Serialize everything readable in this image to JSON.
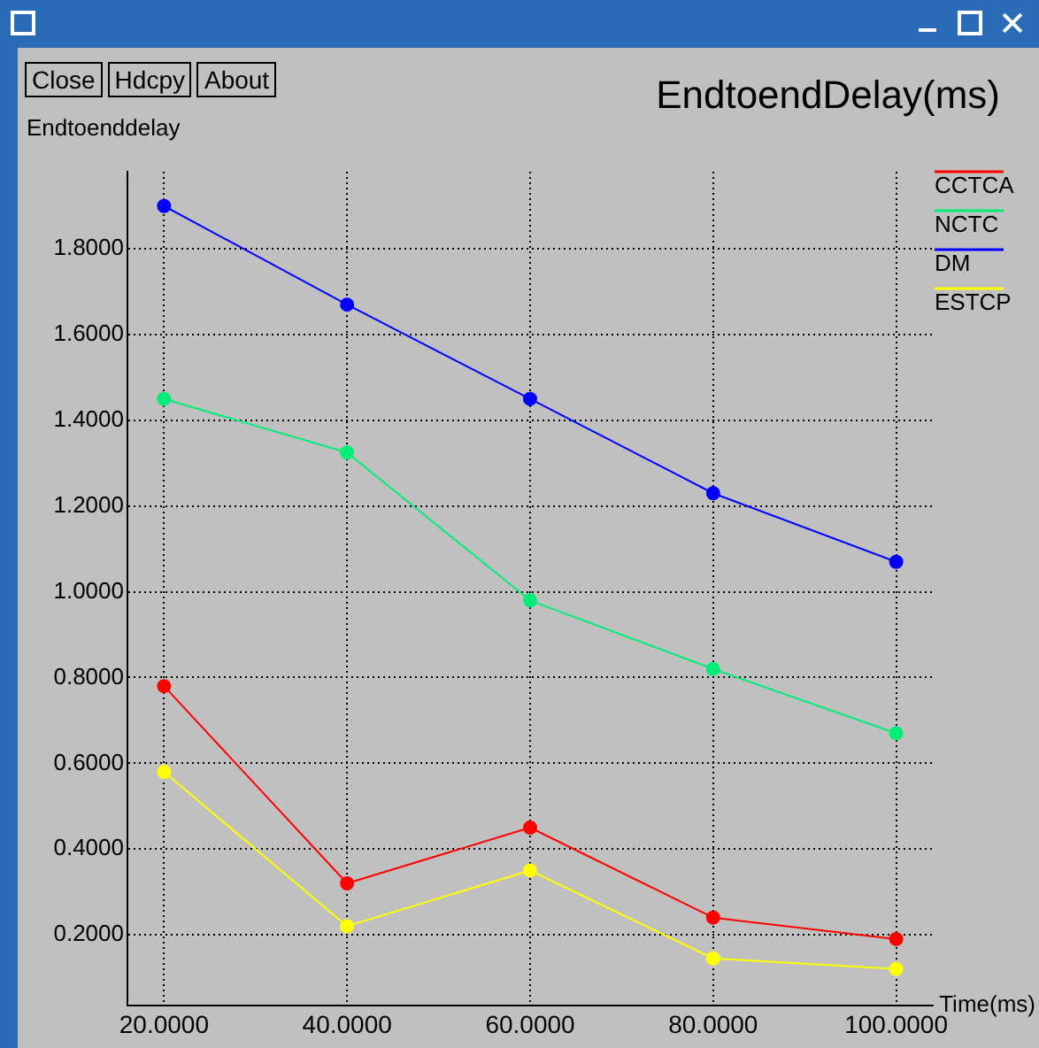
{
  "chart_data": {
    "type": "line",
    "title": "EndtoendDelay(ms)",
    "ylabel": "Endtoenddelay",
    "xlabel": "Time(ms)",
    "annotations": [
      "Close",
      "Hdcpy",
      "About"
    ],
    "x": [
      20,
      40,
      60,
      80,
      100
    ],
    "xlim": [
      16,
      104
    ],
    "xticks": [
      {
        "value": 20,
        "label": "20.0000"
      },
      {
        "value": 40,
        "label": "40.0000"
      },
      {
        "value": 60,
        "label": "60.0000"
      },
      {
        "value": 80,
        "label": "80.0000"
      },
      {
        "value": 100,
        "label": "100.0000"
      }
    ],
    "ylim": [
      0.035,
      1.98
    ],
    "yticks": [
      {
        "value": 0.2,
        "label": "0.2000"
      },
      {
        "value": 0.4,
        "label": "0.4000"
      },
      {
        "value": 0.6,
        "label": "0.6000"
      },
      {
        "value": 0.8,
        "label": "0.8000"
      },
      {
        "value": 1.0,
        "label": "1.0000"
      },
      {
        "value": 1.2,
        "label": "1.2000"
      },
      {
        "value": 1.4,
        "label": "1.4000"
      },
      {
        "value": 1.6,
        "label": "1.6000"
      },
      {
        "value": 1.8,
        "label": "1.8000"
      }
    ],
    "series": [
      {
        "name": "CCTCA",
        "color": "#ff0000",
        "values": [
          0.78,
          0.32,
          0.45,
          0.24,
          0.19
        ]
      },
      {
        "name": "NCTC",
        "color": "#00ee77",
        "values": [
          1.45,
          1.325,
          0.98,
          0.82,
          0.67
        ]
      },
      {
        "name": "DM",
        "color": "#0000ff",
        "values": [
          1.9,
          1.67,
          1.45,
          1.23,
          1.07
        ]
      },
      {
        "name": "ESTCP",
        "color": "#ffff00",
        "values": [
          0.58,
          0.22,
          0.35,
          0.145,
          0.12
        ]
      }
    ],
    "grid": true,
    "legend": "top right",
    "marker": "circle",
    "line_style": "solid"
  }
}
